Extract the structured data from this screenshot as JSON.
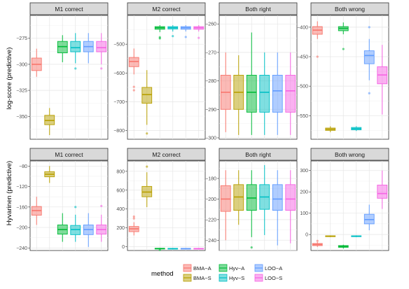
{
  "colors": {
    "BMA-A": "#F8766D",
    "BMA-S": "#B79F00",
    "Hyv-A": "#00BA38",
    "Hyv-S": "#00BFC4",
    "LOO-A": "#619CFF",
    "LOO-S": "#F564E3"
  },
  "legend": {
    "title": "method",
    "placement": "bottom",
    "items": [
      "BMA-A",
      "BMA-S",
      "Hyv-A",
      "Hyv-S",
      "LOO-A",
      "LOO-S"
    ]
  },
  "chart_data": [
    {
      "type": "boxplot",
      "row": 0,
      "col": 0,
      "panel_title": "M1 correct",
      "ylabel": "log-score (predictive)",
      "ylim": [
        -372,
        -253
      ],
      "yticks": [
        -275,
        -300,
        -325,
        -350
      ],
      "series": [
        {
          "name": "BMA-A",
          "min": -312,
          "q1": -306,
          "median": -300,
          "q3": -294,
          "max": -285,
          "outliers": []
        },
        {
          "name": "BMA-S",
          "min": -368,
          "q1": -358,
          "median": -354,
          "q3": -349,
          "max": -342,
          "outliers": []
        },
        {
          "name": "Hyv-A",
          "min": -298,
          "q1": -289,
          "median": -283,
          "q3": -278,
          "max": -272,
          "outliers": []
        },
        {
          "name": "Hyv-S",
          "min": -299,
          "q1": -288,
          "median": -284,
          "q3": -278,
          "max": -270,
          "outliers": [
            -304
          ]
        },
        {
          "name": "LOO-A",
          "min": -299,
          "q1": -288,
          "median": -283,
          "q3": -278,
          "max": -270,
          "outliers": []
        },
        {
          "name": "LOO-S",
          "min": -300,
          "q1": -288,
          "median": -284,
          "q3": -278,
          "max": -270,
          "outliers": [
            -304
          ]
        }
      ]
    },
    {
      "type": "boxplot",
      "row": 0,
      "col": 1,
      "panel_title": "M2 correct",
      "ylabel": "",
      "ylim": [
        -830,
        -400
      ],
      "yticks": [
        -500,
        -600,
        -700,
        -800
      ],
      "series": [
        {
          "name": "BMA-A",
          "min": -605,
          "q1": -578,
          "median": -560,
          "q3": -546,
          "max": -515,
          "outliers": [
            -648,
            -660
          ]
        },
        {
          "name": "BMA-S",
          "min": -780,
          "q1": -705,
          "median": -675,
          "q3": -650,
          "max": -590,
          "outliers": [
            -810
          ]
        },
        {
          "name": "Hyv-A",
          "min": -458,
          "q1": -448,
          "median": -443,
          "q3": -439,
          "max": -434,
          "outliers": [
            -476,
            -480
          ]
        },
        {
          "name": "Hyv-S",
          "min": -456,
          "q1": -447,
          "median": -443,
          "q3": -439,
          "max": -434,
          "outliers": [
            -472
          ]
        },
        {
          "name": "LOO-A",
          "min": -456,
          "q1": -448,
          "median": -443,
          "q3": -439,
          "max": -434,
          "outliers": [
            -475
          ]
        },
        {
          "name": "LOO-S",
          "min": -456,
          "q1": -448,
          "median": -443,
          "q3": -439,
          "max": -434,
          "outliers": [
            -478
          ]
        }
      ]
    },
    {
      "type": "boxplot",
      "row": 0,
      "col": 2,
      "panel_title": "Both right",
      "ylabel": "",
      "ylim": [
        -300.5,
        -257
      ],
      "yticks": [
        -260,
        -270,
        -280,
        -290,
        -300
      ],
      "series": [
        {
          "name": "BMA-A",
          "min": -298,
          "q1": -290,
          "median": -284,
          "q3": -278,
          "max": -270,
          "outliers": []
        },
        {
          "name": "BMA-S",
          "min": -299,
          "q1": -290,
          "median": -284,
          "q3": -278,
          "max": -271,
          "outliers": []
        },
        {
          "name": "Hyv-A",
          "min": -299,
          "q1": -291,
          "median": -284,
          "q3": -278,
          "max": -263,
          "outliers": []
        },
        {
          "name": "Hyv-S",
          "min": -299,
          "q1": -291,
          "median": -284,
          "q3": -278,
          "max": -270,
          "outliers": []
        },
        {
          "name": "LOO-A",
          "min": -299,
          "q1": -291,
          "median": -283.5,
          "q3": -278,
          "max": -270,
          "outliers": []
        },
        {
          "name": "LOO-S",
          "min": -299,
          "q1": -291,
          "median": -283.5,
          "q3": -278,
          "max": -270,
          "outliers": []
        }
      ]
    },
    {
      "type": "boxplot",
      "row": 0,
      "col": 3,
      "panel_title": "Both wrong",
      "ylabel": "",
      "ylim": [
        -590,
        -380
      ],
      "yticks": [
        -400,
        -450,
        -500,
        -550
      ],
      "series": [
        {
          "name": "BMA-A",
          "min": -420,
          "q1": -412,
          "median": -405,
          "q3": -399,
          "max": -390,
          "outliers": [
            -450
          ]
        },
        {
          "name": "BMA-S",
          "min": -578,
          "q1": -575,
          "median": -573,
          "q3": -571,
          "max": -568,
          "outliers": []
        },
        {
          "name": "Hyv-A",
          "min": -412,
          "q1": -406,
          "median": -402,
          "q3": -399,
          "max": -392,
          "outliers": [
            -437
          ]
        },
        {
          "name": "Hyv-S",
          "min": -576,
          "q1": -574,
          "median": -572,
          "q3": -570,
          "max": -568,
          "outliers": []
        },
        {
          "name": "LOO-A",
          "min": -490,
          "q1": -462,
          "median": -448,
          "q3": -440,
          "max": -420,
          "outliers": [
            -400,
            -512
          ]
        },
        {
          "name": "LOO-S",
          "min": -548,
          "q1": -496,
          "median": -481,
          "q3": -467,
          "max": -430,
          "outliers": []
        }
      ]
    },
    {
      "type": "boxplot",
      "row": 1,
      "col": 0,
      "panel_title": "M1 correct",
      "ylabel": "Hyvarinen (predictive)",
      "ylim": [
        -245,
        -70
      ],
      "yticks": [
        -80,
        -120,
        -160,
        -200,
        -240
      ],
      "series": [
        {
          "name": "BMA-A",
          "min": -195,
          "q1": -176,
          "median": -167,
          "q3": -159,
          "max": -140,
          "outliers": []
        },
        {
          "name": "BMA-S",
          "min": -113,
          "q1": -101,
          "median": -96,
          "q3": -91,
          "max": -80,
          "outliers": []
        },
        {
          "name": "Hyv-A",
          "min": -228,
          "q1": -213,
          "median": -204,
          "q3": -195,
          "max": -172,
          "outliers": []
        },
        {
          "name": "Hyv-S",
          "min": -228,
          "q1": -214,
          "median": -204,
          "q3": -196,
          "max": -175,
          "outliers": [
            -160
          ]
        },
        {
          "name": "LOO-A",
          "min": -238,
          "q1": -214,
          "median": -204,
          "q3": -195,
          "max": -172,
          "outliers": []
        },
        {
          "name": "LOO-S",
          "min": -228,
          "q1": -213,
          "median": -204,
          "q3": -195,
          "max": -175,
          "outliers": [
            -158
          ]
        }
      ]
    },
    {
      "type": "boxplot",
      "row": 1,
      "col": 1,
      "panel_title": "M2 correct",
      "ylabel": "",
      "ylim": [
        -40,
        910
      ],
      "yticks": [
        0,
        200,
        400,
        600,
        800
      ],
      "series": [
        {
          "name": "BMA-A",
          "min": 120,
          "q1": 160,
          "median": 190,
          "q3": 215,
          "max": 260,
          "outliers": [
            300,
            320
          ]
        },
        {
          "name": "BMA-S",
          "min": 420,
          "q1": 530,
          "median": 580,
          "q3": 640,
          "max": 790,
          "outliers": [
            850
          ]
        },
        {
          "name": "Hyv-A",
          "min": -30,
          "q1": -24,
          "median": -20,
          "q3": -16,
          "max": -12,
          "outliers": [
            -34
          ]
        },
        {
          "name": "Hyv-S",
          "min": -30,
          "q1": -25,
          "median": -21,
          "q3": -17,
          "max": -13,
          "outliers": []
        },
        {
          "name": "LOO-A",
          "min": -30,
          "q1": -25,
          "median": -21,
          "q3": -17,
          "max": -13,
          "outliers": []
        },
        {
          "name": "LOO-S",
          "min": -30,
          "q1": -25,
          "median": -21,
          "q3": -17,
          "max": -13,
          "outliers": []
        }
      ]
    },
    {
      "type": "boxplot",
      "row": 1,
      "col": 2,
      "panel_title": "Both right",
      "ylabel": "",
      "ylim": [
        -250,
        -163
      ],
      "yticks": [
        -180,
        -200,
        -220,
        -240
      ],
      "series": [
        {
          "name": "BMA-A",
          "min": -240,
          "q1": -212,
          "median": -200,
          "q3": -187,
          "max": -172,
          "outliers": []
        },
        {
          "name": "BMA-S",
          "min": -225,
          "q1": -211,
          "median": -198,
          "q3": -186,
          "max": -172,
          "outliers": []
        },
        {
          "name": "Hyv-A",
          "min": -237,
          "q1": -211,
          "median": -199,
          "q3": -186,
          "max": -172,
          "outliers": [
            -247
          ]
        },
        {
          "name": "Hyv-S",
          "min": -235,
          "q1": -210,
          "median": -198,
          "q3": -186,
          "max": -167,
          "outliers": []
        },
        {
          "name": "LOO-A",
          "min": -245,
          "q1": -211,
          "median": -200,
          "q3": -186,
          "max": -172,
          "outliers": []
        },
        {
          "name": "LOO-S",
          "min": -243,
          "q1": -211,
          "median": -200,
          "q3": -186,
          "max": -172,
          "outliers": []
        }
      ]
    },
    {
      "type": "boxplot",
      "row": 1,
      "col": 3,
      "panel_title": "Both wrong",
      "ylabel": "",
      "ylim": [
        -75,
        345
      ],
      "yticks": [
        0,
        100,
        200,
        300
      ],
      "series": [
        {
          "name": "BMA-A",
          "min": -58,
          "q1": -52,
          "median": -47,
          "q3": -42,
          "max": -36,
          "outliers": [
            -30
          ]
        },
        {
          "name": "BMA-S",
          "min": -12,
          "q1": -10,
          "median": -8,
          "q3": -6,
          "max": -4,
          "outliers": []
        },
        {
          "name": "Hyv-A",
          "min": -66,
          "q1": -60,
          "median": -56,
          "q3": -52,
          "max": -48,
          "outliers": []
        },
        {
          "name": "Hyv-S",
          "min": -12,
          "q1": -10,
          "median": -8,
          "q3": -6,
          "max": -4,
          "outliers": []
        },
        {
          "name": "LOO-A",
          "min": 20,
          "q1": 50,
          "median": 70,
          "q3": 95,
          "max": 140,
          "outliers": []
        },
        {
          "name": "LOO-S",
          "min": 120,
          "q1": 170,
          "median": 192,
          "q3": 232,
          "max": 300,
          "outliers": []
        }
      ]
    }
  ]
}
